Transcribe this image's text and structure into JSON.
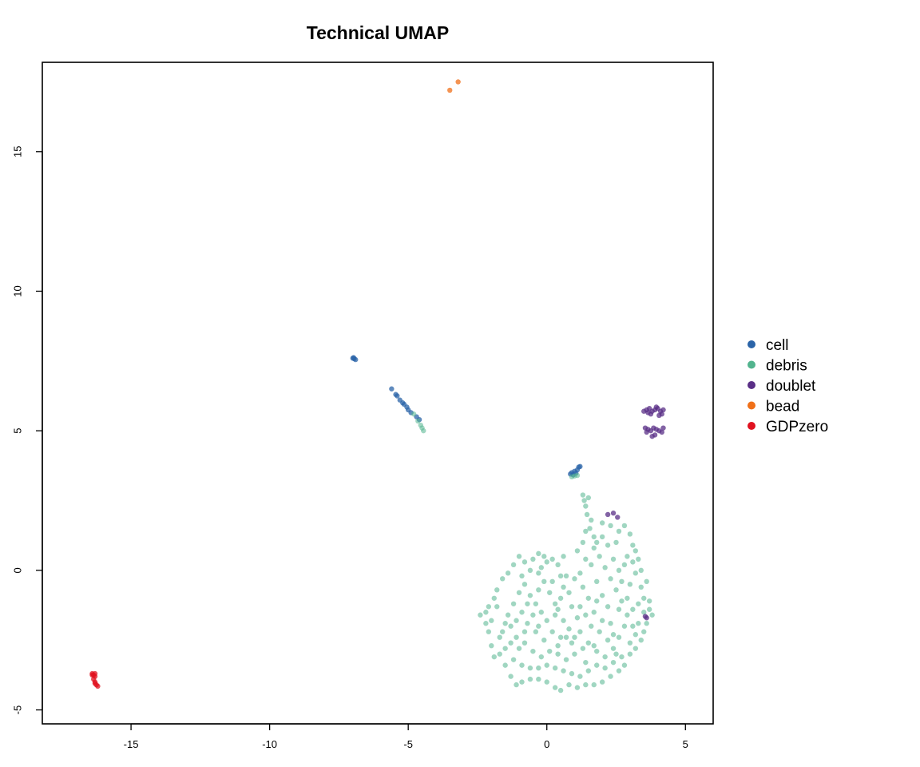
{
  "chart_data": {
    "type": "scatter",
    "title": "Technical UMAP",
    "xlabel": "",
    "ylabel": "",
    "xlim": [
      -18.2,
      6.0
    ],
    "ylim": [
      -5.5,
      18.2
    ],
    "x_ticks": [
      -15,
      -10,
      -5,
      0,
      5
    ],
    "y_ticks": [
      -5,
      0,
      5,
      10,
      15
    ],
    "grid": false,
    "legend_position": "right",
    "series": [
      {
        "name": "cell",
        "color": "#2b64a8",
        "points": [
          [
            -7.0,
            7.6
          ],
          [
            -6.95,
            7.58
          ],
          [
            -6.9,
            7.55
          ],
          [
            -6.97,
            7.62
          ],
          [
            -5.6,
            6.5
          ],
          [
            -5.45,
            6.3
          ],
          [
            -5.4,
            6.25
          ],
          [
            -5.3,
            6.1
          ],
          [
            -5.2,
            6.0
          ],
          [
            -5.15,
            5.95
          ],
          [
            -5.05,
            5.85
          ],
          [
            -5.0,
            5.75
          ],
          [
            -4.9,
            5.65
          ],
          [
            -4.7,
            5.5
          ],
          [
            -4.6,
            5.4
          ],
          [
            0.85,
            3.45
          ],
          [
            0.9,
            3.5
          ],
          [
            0.95,
            3.42
          ],
          [
            1.0,
            3.55
          ],
          [
            1.1,
            3.6
          ],
          [
            1.15,
            3.7
          ],
          [
            1.2,
            3.72
          ],
          [
            1.05,
            3.48
          ]
        ]
      },
      {
        "name": "debris",
        "color": "#52b48e",
        "points": [
          [
            -4.8,
            5.6
          ],
          [
            -4.65,
            5.35
          ],
          [
            -4.55,
            5.2
          ],
          [
            -4.5,
            5.1
          ],
          [
            -4.45,
            5.0
          ],
          [
            0.9,
            3.35
          ],
          [
            1.0,
            3.38
          ],
          [
            1.1,
            3.4
          ],
          [
            1.3,
            2.7
          ],
          [
            1.35,
            2.5
          ],
          [
            1.4,
            2.3
          ],
          [
            1.5,
            2.6
          ],
          [
            1.45,
            2.0
          ],
          [
            1.6,
            1.8
          ],
          [
            1.55,
            1.5
          ],
          [
            1.7,
            1.2
          ],
          [
            2.0,
            1.7
          ],
          [
            2.3,
            1.6
          ],
          [
            2.6,
            1.4
          ],
          [
            2.8,
            1.6
          ],
          [
            3.0,
            1.3
          ],
          [
            3.1,
            0.9
          ],
          [
            3.2,
            0.7
          ],
          [
            3.1,
            0.3
          ],
          [
            3.2,
            -0.1
          ],
          [
            3.4,
            -0.6
          ],
          [
            3.5,
            -1.0
          ],
          [
            3.7,
            -1.4
          ],
          [
            3.8,
            -1.6
          ],
          [
            3.6,
            -1.9
          ],
          [
            3.5,
            -2.2
          ],
          [
            3.4,
            -2.5
          ],
          [
            3.2,
            -2.8
          ],
          [
            3.0,
            -3.0
          ],
          [
            2.8,
            -3.4
          ],
          [
            2.6,
            -3.6
          ],
          [
            2.3,
            -3.8
          ],
          [
            2.0,
            -4.0
          ],
          [
            1.7,
            -4.1
          ],
          [
            1.4,
            -4.1
          ],
          [
            1.1,
            -4.2
          ],
          [
            0.8,
            -4.1
          ],
          [
            0.5,
            -4.3
          ],
          [
            0.3,
            -4.2
          ],
          [
            0.0,
            -4.0
          ],
          [
            -0.3,
            -3.9
          ],
          [
            -0.6,
            -3.9
          ],
          [
            -0.9,
            -4.0
          ],
          [
            -1.1,
            -4.1
          ],
          [
            -1.3,
            -3.8
          ],
          [
            -1.5,
            -3.4
          ],
          [
            -1.7,
            -3.0
          ],
          [
            -1.9,
            -3.1
          ],
          [
            -2.0,
            -2.7
          ],
          [
            -2.1,
            -2.2
          ],
          [
            -2.0,
            -1.8
          ],
          [
            -2.2,
            -1.5
          ],
          [
            -2.4,
            -1.6
          ],
          [
            -2.1,
            -1.3
          ],
          [
            -1.9,
            -1.0
          ],
          [
            -1.8,
            -0.7
          ],
          [
            -1.6,
            -0.3
          ],
          [
            -1.4,
            -0.1
          ],
          [
            -1.2,
            0.2
          ],
          [
            -1.0,
            0.5
          ],
          [
            -0.8,
            0.3
          ],
          [
            -0.5,
            0.4
          ],
          [
            -0.3,
            0.6
          ],
          [
            -0.1,
            0.5
          ],
          [
            0.2,
            0.4
          ],
          [
            0.4,
            0.2
          ],
          [
            0.5,
            -0.2
          ],
          [
            0.6,
            -0.6
          ],
          [
            0.5,
            -1.0
          ],
          [
            0.4,
            -1.4
          ],
          [
            0.6,
            -1.8
          ],
          [
            0.8,
            -2.1
          ],
          [
            1.0,
            -2.4
          ],
          [
            1.2,
            -2.2
          ],
          [
            1.5,
            -2.6
          ],
          [
            1.8,
            -2.9
          ],
          [
            2.1,
            -3.1
          ],
          [
            2.4,
            -2.8
          ],
          [
            2.6,
            -2.4
          ],
          [
            2.8,
            -2.0
          ],
          [
            2.9,
            -1.6
          ],
          [
            2.7,
            -1.1
          ],
          [
            2.5,
            -0.7
          ],
          [
            2.3,
            -0.3
          ],
          [
            2.1,
            0.1
          ],
          [
            1.9,
            0.5
          ],
          [
            1.7,
            0.8
          ],
          [
            1.6,
            0.2
          ],
          [
            1.8,
            -0.4
          ],
          [
            2.0,
            -0.9
          ],
          [
            2.2,
            -1.3
          ],
          [
            2.0,
            -1.8
          ],
          [
            1.7,
            -1.5
          ],
          [
            1.5,
            -1.0
          ],
          [
            1.3,
            -0.6
          ],
          [
            1.2,
            -0.1
          ],
          [
            1.4,
            0.4
          ],
          [
            1.0,
            -0.3
          ],
          [
            0.8,
            -0.8
          ],
          [
            0.9,
            -1.3
          ],
          [
            1.1,
            -1.7
          ],
          [
            0.7,
            -2.4
          ],
          [
            0.4,
            -2.7
          ],
          [
            0.1,
            -2.9
          ],
          [
            -0.2,
            -3.1
          ],
          [
            -0.5,
            -2.9
          ],
          [
            -0.8,
            -2.6
          ],
          [
            -1.1,
            -2.4
          ],
          [
            -1.3,
            -2.0
          ],
          [
            -1.4,
            -1.6
          ],
          [
            -1.2,
            -1.2
          ],
          [
            -1.0,
            -0.8
          ],
          [
            -0.8,
            -0.5
          ],
          [
            -0.6,
            -0.9
          ],
          [
            -0.4,
            -1.2
          ],
          [
            -0.2,
            -1.5
          ],
          [
            0.0,
            -1.8
          ],
          [
            0.2,
            -2.2
          ],
          [
            -0.1,
            -2.5
          ],
          [
            -0.4,
            -2.2
          ],
          [
            -0.7,
            -1.9
          ],
          [
            -0.9,
            -1.5
          ],
          [
            -0.5,
            -1.6
          ],
          [
            -0.3,
            -2.0
          ],
          [
            0.3,
            -1.2
          ],
          [
            0.1,
            -0.8
          ],
          [
            -0.1,
            -0.4
          ],
          [
            -0.3,
            -0.1
          ],
          [
            -0.6,
            0.0
          ],
          [
            -0.9,
            -0.2
          ],
          [
            -1.5,
            -1.9
          ],
          [
            -1.7,
            -2.4
          ],
          [
            -1.5,
            -2.8
          ],
          [
            -1.2,
            -3.2
          ],
          [
            -0.9,
            -3.4
          ],
          [
            -0.6,
            -3.5
          ],
          [
            -0.3,
            -3.5
          ],
          [
            0.0,
            -3.4
          ],
          [
            0.3,
            -3.5
          ],
          [
            0.6,
            -3.6
          ],
          [
            0.9,
            -3.7
          ],
          [
            1.2,
            -3.8
          ],
          [
            1.5,
            -3.6
          ],
          [
            1.8,
            -3.4
          ],
          [
            2.1,
            -3.5
          ],
          [
            2.4,
            -3.3
          ],
          [
            2.7,
            -3.1
          ],
          [
            3.0,
            -2.6
          ],
          [
            3.2,
            -2.3
          ],
          [
            3.3,
            -1.9
          ],
          [
            3.1,
            -1.4
          ],
          [
            2.9,
            -1.0
          ],
          [
            2.7,
            -0.4
          ],
          [
            2.6,
            0.0
          ],
          [
            2.4,
            0.4
          ],
          [
            2.2,
            0.9
          ],
          [
            2.0,
            1.2
          ],
          [
            1.8,
            1.0
          ],
          [
            2.5,
            1.0
          ],
          [
            2.9,
            0.5
          ],
          [
            3.3,
            0.4
          ],
          [
            3.4,
            0.0
          ],
          [
            3.6,
            -0.4
          ],
          [
            3.0,
            -0.5
          ],
          [
            2.8,
            0.2
          ],
          [
            1.6,
            -2.0
          ],
          [
            1.3,
            -2.8
          ],
          [
            1.0,
            -3.0
          ],
          [
            0.7,
            -3.2
          ],
          [
            0.4,
            -3.0
          ],
          [
            -2.2,
            -1.9
          ],
          [
            -1.8,
            -1.3
          ],
          [
            -0.2,
            0.1
          ],
          [
            0.0,
            0.3
          ],
          [
            0.6,
            0.5
          ],
          [
            1.1,
            0.7
          ],
          [
            1.3,
            1.0
          ],
          [
            1.4,
            1.4
          ],
          [
            3.7,
            -1.1
          ],
          [
            3.5,
            -1.5
          ],
          [
            3.3,
            -1.2
          ],
          [
            3.1,
            -2.0
          ],
          [
            2.5,
            -3.0
          ],
          [
            2.2,
            -2.5
          ],
          [
            1.9,
            -2.2
          ],
          [
            1.7,
            -2.7
          ],
          [
            1.4,
            -3.3
          ],
          [
            -0.8,
            -2.2
          ],
          [
            -1.0,
            -2.8
          ],
          [
            -1.3,
            -2.6
          ],
          [
            -1.6,
            -2.2
          ],
          [
            -1.1,
            -1.8
          ],
          [
            -0.7,
            -1.2
          ],
          [
            -0.3,
            -0.7
          ],
          [
            0.2,
            -0.4
          ],
          [
            0.7,
            -0.2
          ],
          [
            0.3,
            -1.6
          ],
          [
            0.5,
            -2.4
          ],
          [
            0.9,
            -2.6
          ],
          [
            1.2,
            -1.3
          ],
          [
            1.4,
            -1.6
          ],
          [
            1.8,
            -1.1
          ],
          [
            2.3,
            -1.9
          ],
          [
            2.6,
            -1.4
          ],
          [
            2.4,
            -2.3
          ]
        ]
      },
      {
        "name": "doublet",
        "color": "#5a2f87",
        "points": [
          [
            3.5,
            5.7
          ],
          [
            3.6,
            5.75
          ],
          [
            3.7,
            5.8
          ],
          [
            3.8,
            5.7
          ],
          [
            3.9,
            5.75
          ],
          [
            4.0,
            5.8
          ],
          [
            4.1,
            5.7
          ],
          [
            4.2,
            5.75
          ],
          [
            3.65,
            5.65
          ],
          [
            3.95,
            5.85
          ],
          [
            4.15,
            5.6
          ],
          [
            4.05,
            5.55
          ],
          [
            3.75,
            5.6
          ],
          [
            3.55,
            5.1
          ],
          [
            3.65,
            5.05
          ],
          [
            3.75,
            5.0
          ],
          [
            3.85,
            5.1
          ],
          [
            3.95,
            5.05
          ],
          [
            4.05,
            5.0
          ],
          [
            4.15,
            4.95
          ],
          [
            4.2,
            5.1
          ],
          [
            3.8,
            4.8
          ],
          [
            3.9,
            4.85
          ],
          [
            3.6,
            4.95
          ],
          [
            2.2,
            2.0
          ],
          [
            2.4,
            2.05
          ],
          [
            2.55,
            1.9
          ],
          [
            3.55,
            -1.65
          ],
          [
            3.6,
            -1.7
          ]
        ]
      },
      {
        "name": "bead",
        "color": "#f07019",
        "points": [
          [
            -3.2,
            17.5
          ],
          [
            -3.5,
            17.2
          ]
        ]
      },
      {
        "name": "GDPzero",
        "color": "#e0121f",
        "points": [
          [
            -16.4,
            -3.7
          ],
          [
            -16.35,
            -3.75
          ],
          [
            -16.3,
            -3.8
          ],
          [
            -16.35,
            -3.9
          ],
          [
            -16.3,
            -4.0
          ],
          [
            -16.3,
            -4.05
          ],
          [
            -16.25,
            -4.1
          ],
          [
            -16.2,
            -4.15
          ],
          [
            -16.4,
            -3.75
          ],
          [
            -16.3,
            -3.7
          ]
        ]
      }
    ]
  }
}
